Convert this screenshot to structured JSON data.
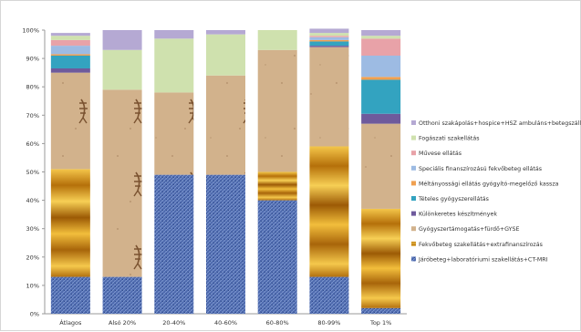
{
  "chart_data": {
    "type": "bar",
    "stacked": true,
    "normalized": true,
    "categories": [
      "Átlagos",
      "Alsó 20%",
      "20-40%",
      "40-60%",
      "60-80%",
      "80-99%",
      "Top 1%"
    ],
    "y_ticks": [
      "0%",
      "10%",
      "20%",
      "30%",
      "40%",
      "50%",
      "60%",
      "70%",
      "80%",
      "90%",
      "100%"
    ],
    "ylim": [
      0,
      100
    ],
    "legend_position": "right",
    "grid": false,
    "series": [
      {
        "name": "Járóbeteg+laboratóriumi szakellátás+CT-MRI",
        "color": "#5b78b8",
        "pattern": "denim",
        "values": [
          13,
          13,
          49,
          49,
          40,
          13,
          2
        ]
      },
      {
        "name": "Fekvőbeteg szakellátás+extrafinanszírozás",
        "color": "#e39a12",
        "pattern": "gold",
        "values": [
          38,
          0,
          0,
          0,
          10,
          46,
          35
        ]
      },
      {
        "name": "Gyógyszertámogatás+fürdő+GYSE",
        "color": "#c8a77e",
        "pattern": "fossil",
        "values": [
          34,
          66,
          29,
          35,
          43,
          35,
          30
        ]
      },
      {
        "name": "Különkeretes készítmények",
        "color": "#6e5a9c",
        "values": [
          1.5,
          0,
          0,
          0,
          0,
          0.5,
          3.5
        ]
      },
      {
        "name": "Tételes gyógyszerellátás",
        "color": "#33a3c0",
        "values": [
          4.5,
          0,
          0,
          0,
          0,
          1.5,
          12
        ]
      },
      {
        "name": "Méltányossági ellátás gyógyító-megelőző kassza",
        "color": "#f0a050",
        "values": [
          0.5,
          0,
          0,
          0,
          0,
          0.5,
          1
        ]
      },
      {
        "name": "Speciális finanszírozású fekvőbeteg ellátás",
        "color": "#9dbbe3",
        "values": [
          3,
          0,
          0,
          0,
          0,
          1,
          7.5
        ]
      },
      {
        "name": "Művese ellátás",
        "color": "#e8a2a8",
        "values": [
          2,
          0,
          0,
          0,
          0,
          0.5,
          6
        ]
      },
      {
        "name": "Fogászati szakellátás",
        "color": "#cfe1ae",
        "values": [
          1.5,
          14,
          19,
          14.5,
          7,
          1,
          1
        ]
      },
      {
        "name": "Otthoni szakápolás+hospice+HSZ ambuláns+betegszállítás",
        "color": "#b5a9d3",
        "values": [
          1,
          7,
          3,
          1.5,
          0,
          1.5,
          2
        ]
      }
    ],
    "legend_order": [
      9,
      8,
      7,
      6,
      5,
      4,
      3,
      2,
      1,
      0
    ]
  }
}
